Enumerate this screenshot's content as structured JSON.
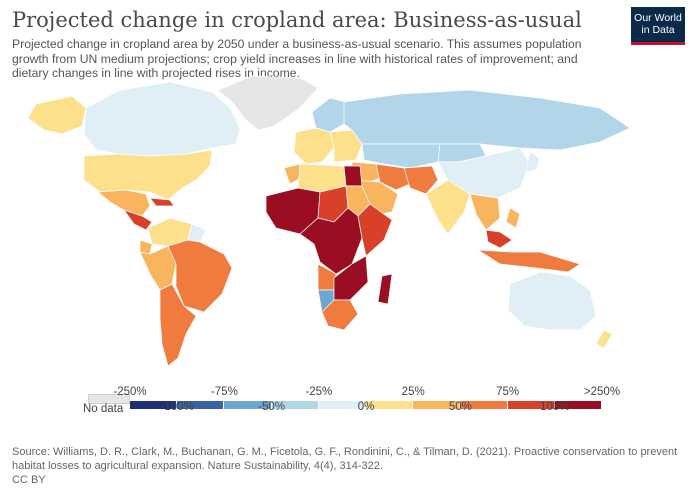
{
  "header": {
    "title": "Projected change in cropland area: Business-as-usual",
    "subtitle": "Projected change in cropland area by 2050 under a business-as-usual scenario. This assumes population growth from UN medium projections; crop yield increases in line with historical rates of improvement; and dietary changes in line with projected rises in income."
  },
  "logo": {
    "line1": "Our World",
    "line2": "in Data"
  },
  "colors": {
    "no_data": "#e6e6e6",
    "bins": [
      "#1f2f7a",
      "#3a62a6",
      "#6ea6cf",
      "#b2d6e9",
      "#e0eff5",
      "#fde08c",
      "#f9b45e",
      "#ef7b3e",
      "#d8402a",
      "#9b0d23"
    ],
    "ocean": "#ffffff",
    "border": "#ffffff"
  },
  "legend": {
    "no_data_label": "No data",
    "upper_labels": [
      "-250%",
      "-75%",
      "-25%",
      "25%",
      "75%",
      ">250%"
    ],
    "lower_labels": [
      "-100%",
      "-50%",
      "0%",
      "50%",
      "100%"
    ]
  },
  "regions": [
    {
      "id": "greenland",
      "bin": -1
    },
    {
      "id": "canada",
      "bin": 4
    },
    {
      "id": "usa",
      "bin": 5
    },
    {
      "id": "alaska",
      "bin": 5
    },
    {
      "id": "mexico",
      "bin": 6
    },
    {
      "id": "central-america",
      "bin": 8
    },
    {
      "id": "caribbean",
      "bin": 8
    },
    {
      "id": "colombia-venezuela",
      "bin": 5
    },
    {
      "id": "ecuador",
      "bin": 6
    },
    {
      "id": "peru-bolivia",
      "bin": 6
    },
    {
      "id": "brazil",
      "bin": 7
    },
    {
      "id": "southern-cone",
      "bin": 7
    },
    {
      "id": "guianas",
      "bin": 4
    },
    {
      "id": "western-europe",
      "bin": 5
    },
    {
      "id": "scandinavia",
      "bin": 3
    },
    {
      "id": "eastern-europe",
      "bin": 5
    },
    {
      "id": "russia",
      "bin": 3
    },
    {
      "id": "north-africa",
      "bin": 5
    },
    {
      "id": "morocco",
      "bin": 6
    },
    {
      "id": "egypt",
      "bin": 9
    },
    {
      "id": "sahel-west",
      "bin": 9
    },
    {
      "id": "chad-niger",
      "bin": 8
    },
    {
      "id": "sudan",
      "bin": 6
    },
    {
      "id": "central-africa",
      "bin": 9
    },
    {
      "id": "east-africa",
      "bin": 8
    },
    {
      "id": "angola",
      "bin": 7
    },
    {
      "id": "namibia",
      "bin": 2
    },
    {
      "id": "southern-africa",
      "bin": 7
    },
    {
      "id": "botswana-zim",
      "bin": 9
    },
    {
      "id": "madagascar",
      "bin": 9
    },
    {
      "id": "middle-east",
      "bin": 6
    },
    {
      "id": "iran",
      "bin": 7
    },
    {
      "id": "arabia",
      "bin": 6
    },
    {
      "id": "central-asia",
      "bin": 3
    },
    {
      "id": "afghanistan-pakistan",
      "bin": 7
    },
    {
      "id": "india",
      "bin": 5
    },
    {
      "id": "china",
      "bin": 4
    },
    {
      "id": "mongolia",
      "bin": 3
    },
    {
      "id": "southeast-asia",
      "bin": 6
    },
    {
      "id": "malaysia",
      "bin": 8
    },
    {
      "id": "indonesia",
      "bin": 7
    },
    {
      "id": "philippines",
      "bin": 6
    },
    {
      "id": "japan",
      "bin": 4
    },
    {
      "id": "australia",
      "bin": 4
    },
    {
      "id": "new-zealand",
      "bin": 5
    }
  ],
  "source": {
    "text": "Source: Williams, D. R., Clark, M., Buchanan, G. M., Ficetola, G. F., Rondinini, C., & Tilman, D. (2021). Proactive conservation to prevent habitat losses to agricultural expansion. Nature Sustainability, 4(4), 314-322.",
    "license": "CC BY"
  }
}
